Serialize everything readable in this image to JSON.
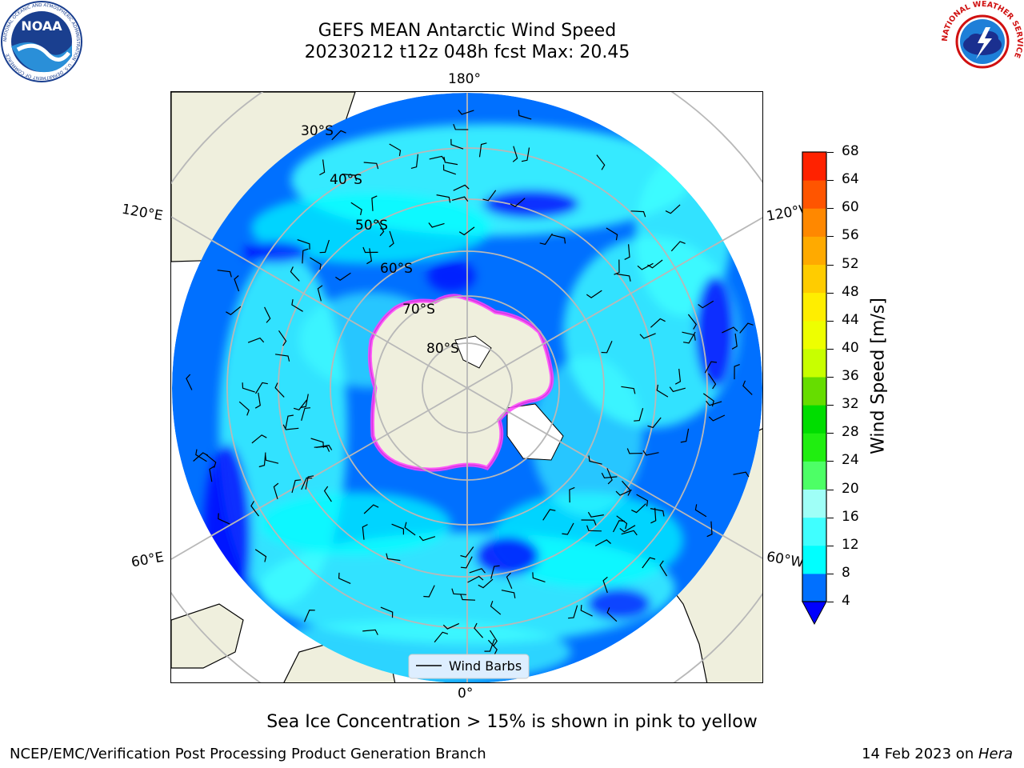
{
  "header": {
    "title_line1": "GEFS MEAN Antarctic Wind Speed",
    "title_line2": "20230212 t12z 048h fcst   Max: 20.45"
  },
  "logos": {
    "noaa": "NOAA",
    "noaa_ring": "NATIONAL OCEANIC AND ATMOSPHERIC ADMINISTRATION · U.S. DEPARTMENT OF COMMERCE",
    "nws_ring": "NATIONAL WEATHER SERVICE"
  },
  "map": {
    "projection": "south-polar-stereographic",
    "lon_labels": {
      "top": "180°",
      "bottom": "0°",
      "upper_left": "120°E",
      "upper_right": "120°W",
      "lower_left": "60°E",
      "lower_right": "60°W"
    },
    "lat_labels": [
      "30°S",
      "40°S",
      "50°S",
      "60°S",
      "70°S",
      "80°S"
    ],
    "legend_label": "Wind Barbs",
    "colors": {
      "land": "#efefdd",
      "ocean_4_8": "#0070ff",
      "ocean_8_12": "#00ffff",
      "ocean_12_16": "#40ffff",
      "ocean_below_4": "#0000ff",
      "sea_ice": "#ff40ff",
      "grid": "#b8b8b8"
    }
  },
  "colorbar": {
    "label": "Wind Speed [m/s]",
    "ticks": [
      "4",
      "8",
      "12",
      "16",
      "20",
      "24",
      "28",
      "32",
      "36",
      "40",
      "44",
      "48",
      "52",
      "56",
      "60",
      "64",
      "68"
    ],
    "colors": [
      "#0070ff",
      "#00ffff",
      "#40ffff",
      "#9ffff7",
      "#4dff66",
      "#20ee10",
      "#00dd00",
      "#66dd00",
      "#c8ff00",
      "#eeff00",
      "#ffee00",
      "#ffcc00",
      "#ffaa00",
      "#ff8800",
      "#ff5500",
      "#ff2200",
      "#ff0000"
    ],
    "under_color": "#0000ff"
  },
  "footer": {
    "note": "Sea Ice Concentration > 15% is shown in pink to yellow",
    "credit": "NCEP/EMC/Verification Post Processing Product Generation Branch",
    "date": "14 Feb 2023 on ",
    "machine": "Hera"
  }
}
